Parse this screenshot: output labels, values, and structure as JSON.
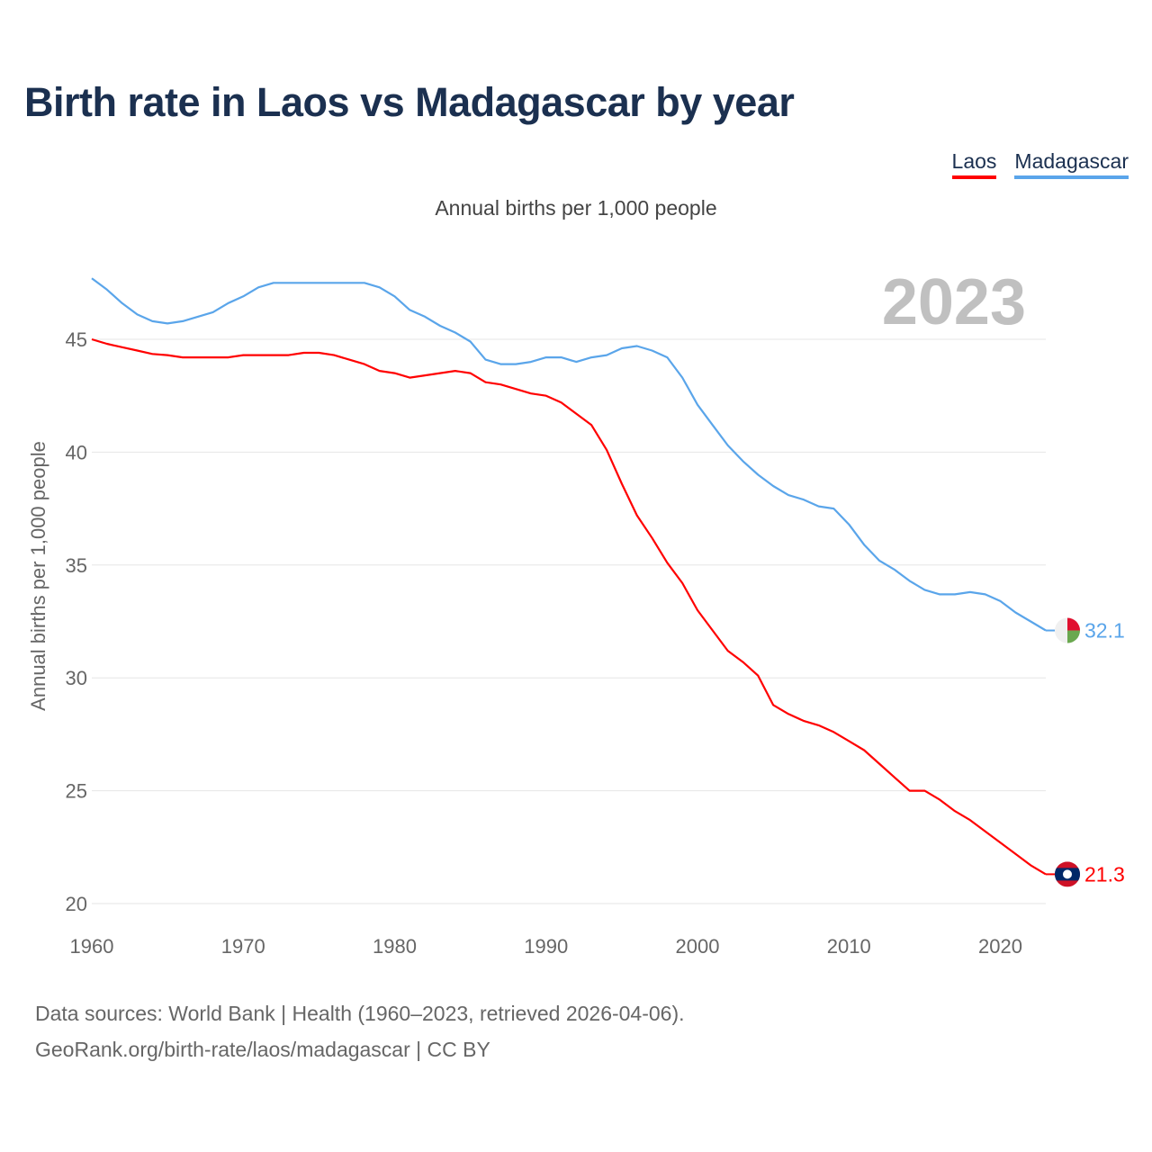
{
  "title": "Birth rate in Laos vs Madagascar by year",
  "legend": [
    {
      "label": "Laos",
      "color": "#ff0000"
    },
    {
      "label": "Madagascar",
      "color": "#5aa5ea"
    }
  ],
  "subtitle": "Annual births per 1,000 people",
  "year_label": "2023",
  "footer": {
    "line1": "Data sources: World Bank | Health (1960–2023, retrieved 2026-04-06).",
    "line2": "GeoRank.org/birth-rate/laos/madagascar | CC BY"
  },
  "chart_data": {
    "type": "line",
    "title": "Birth rate in Laos vs Madagascar by year",
    "xlabel": "",
    "ylabel": "Annual births per 1,000 people",
    "xlim": [
      1960,
      2023
    ],
    "ylim": [
      20,
      48
    ],
    "grid": true,
    "legend_placement": "top-right",
    "x_ticks": [
      "1960",
      "1970",
      "1980",
      "1990",
      "2000",
      "2010",
      "2020"
    ],
    "y_ticks": [
      "20",
      "25",
      "30",
      "35",
      "40",
      "45"
    ],
    "x_start": 1960,
    "series": [
      {
        "name": "Laos",
        "color": "#ff0000",
        "end_label": "21.3",
        "values": [
          45.0,
          44.8,
          44.65,
          44.5,
          44.35,
          44.3,
          44.2,
          44.2,
          44.2,
          44.2,
          44.3,
          44.3,
          44.3,
          44.3,
          44.4,
          44.4,
          44.3,
          44.1,
          43.9,
          43.6,
          43.5,
          43.3,
          43.4,
          43.5,
          43.6,
          43.5,
          43.1,
          43.0,
          42.8,
          42.6,
          42.5,
          42.2,
          41.7,
          41.2,
          40.1,
          38.6,
          37.2,
          36.2,
          35.1,
          34.2,
          33.0,
          32.1,
          31.2,
          30.7,
          30.1,
          28.8,
          28.4,
          28.1,
          27.9,
          27.6,
          27.2,
          26.8,
          26.2,
          25.6,
          25.0,
          25.0,
          24.6,
          24.1,
          23.7,
          23.2,
          22.7,
          22.2,
          21.7,
          21.3
        ]
      },
      {
        "name": "Madagascar",
        "color": "#5aa5ea",
        "end_label": "32.1",
        "values": [
          47.7,
          47.2,
          46.6,
          46.1,
          45.8,
          45.7,
          45.8,
          46.0,
          46.2,
          46.6,
          46.9,
          47.3,
          47.5,
          47.5,
          47.5,
          47.5,
          47.5,
          47.5,
          47.5,
          47.3,
          46.9,
          46.3,
          46.0,
          45.6,
          45.3,
          44.9,
          44.1,
          43.9,
          43.9,
          44.0,
          44.2,
          44.2,
          44.0,
          44.2,
          44.3,
          44.6,
          44.7,
          44.5,
          44.2,
          43.3,
          42.1,
          41.2,
          40.3,
          39.6,
          39.0,
          38.5,
          38.1,
          37.9,
          37.6,
          37.5,
          36.8,
          35.9,
          35.2,
          34.8,
          34.3,
          33.9,
          33.7,
          33.7,
          33.8,
          33.7,
          33.4,
          32.9,
          32.5,
          32.1
        ]
      }
    ]
  }
}
